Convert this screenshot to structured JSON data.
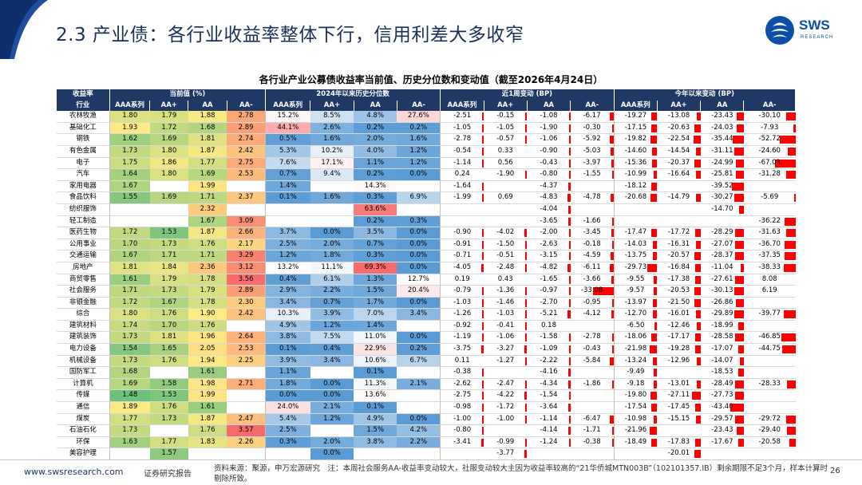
{
  "header": {
    "title": "2.3 产业债：各行业收益率整体下行，信用利差大多收窄",
    "logo_text": "SWS",
    "logo_sub": "RESEARCH"
  },
  "table_title": "各行业产业公募债收益率当前值、历史分位数和变动值（截至2026年4月24日）",
  "groups": [
    "收益率",
    "当前值 (%)",
    "2024年以来历史分位数",
    "近1周变动 (BP)",
    "今年以来变动 (BP)"
  ],
  "subheaders": [
    "行业",
    "AAA系列",
    "AA+",
    "AA",
    "AA-",
    "AAA系列",
    "AA+",
    "AA",
    "AA-",
    "AAA系列",
    "AA+",
    "AA",
    "AA-",
    "AAA系列",
    "AA+",
    "AA",
    "AA-"
  ],
  "rows": [
    {
      "ind": "农林牧渔",
      "cur": [
        "1.80",
        "1.79",
        "1.88",
        "2.78"
      ],
      "pct": [
        "15.2%",
        "8.5%",
        "4.8%",
        "27.6%"
      ],
      "wk": [
        "-2.51",
        "-0.15",
        "-1.08",
        "-6.17"
      ],
      "ytd": [
        "-19.27",
        "-13.08",
        "-23.43",
        "-30.10"
      ]
    },
    {
      "ind": "基础化工",
      "cur": [
        "1.93",
        "1.72",
        "1.68",
        "2.89"
      ],
      "pct": [
        "44.1%",
        "2.6%",
        "0.2%",
        "0.2%"
      ],
      "wk": [
        "-1.05",
        "-1.05",
        "-1.90",
        "-0.30"
      ],
      "ytd": [
        "-17.15",
        "-20.63",
        "-24.03",
        "-7.93"
      ]
    },
    {
      "ind": "钢铁",
      "cur": [
        "1.62",
        "1.69",
        "1.81",
        "2.74"
      ],
      "pct": [
        "0.5%",
        "1.6%",
        "2.0%",
        "1.6%"
      ],
      "wk": [
        "-2.78",
        "-0.57",
        "-1.06",
        "-5.92"
      ],
      "ytd": [
        "-19.82",
        "-22.54",
        "-35.44",
        "-52.72"
      ]
    },
    {
      "ind": "有色金属",
      "cur": [
        "1.73",
        "1.80",
        "1.87",
        "2.42"
      ],
      "pct": [
        "5.3%",
        "10.2%",
        "4.0%",
        "1.2%"
      ],
      "wk": [
        "-0.54",
        "0.33",
        "-0.90",
        "-5.03"
      ],
      "ytd": [
        "-14.60",
        "-14.54",
        "-31.11",
        "-24.60"
      ]
    },
    {
      "ind": "电子",
      "cur": [
        "1.75",
        "1.86",
        "1.77",
        "2.75"
      ],
      "pct": [
        "7.6%",
        "17.1%",
        "1.1%",
        "1.2%"
      ],
      "wk": [
        "-1.14",
        "0.56",
        "-0.43",
        "-3.97"
      ],
      "ytd": [
        "-15.36",
        "-20.37",
        "-24.99",
        "-67.03"
      ]
    },
    {
      "ind": "汽车",
      "cur": [
        "1.64",
        "1.80",
        "1.69",
        "2.53"
      ],
      "pct": [
        "0.7%",
        "9.4%",
        "0.2%",
        "0.0%"
      ],
      "wk": [
        "0.24",
        "-1.90",
        "-0.80",
        "-1.55"
      ],
      "ytd": [
        "-10.99",
        "-16.64",
        "-25.81",
        "-31.28"
      ]
    },
    {
      "ind": "家用电器",
      "cur": [
        "1.67",
        "",
        "1.99",
        ""
      ],
      "pct": [
        "1.4%",
        "",
        "14.3%",
        ""
      ],
      "wk": [
        "-1.64",
        "",
        "-4.37",
        ""
      ],
      "ytd": [
        "-18.12",
        "",
        "-39.52",
        ""
      ]
    },
    {
      "ind": "食品饮料",
      "cur": [
        "1.55",
        "1.69",
        "1.71",
        "2.37"
      ],
      "pct": [
        "0.1%",
        "1.6%",
        "0.3%",
        "6.9%"
      ],
      "wk": [
        "-1.99",
        "0.69",
        "-4.83",
        "-4.78"
      ],
      "ytd": [
        "-20.68",
        "-14.79",
        "-30.27",
        "-5.69"
      ]
    },
    {
      "ind": "纺织服饰",
      "cur": [
        "",
        "",
        "2.32",
        ""
      ],
      "pct": [
        "",
        "",
        "63.6%",
        ""
      ],
      "wk": [
        "",
        "",
        "-4.04",
        ""
      ],
      "ytd": [
        "",
        "",
        "-14.70",
        ""
      ]
    },
    {
      "ind": "轻工制造",
      "cur": [
        "",
        "",
        "1.67",
        "3.09"
      ],
      "pct": [
        "",
        "",
        "0.2%",
        "0.3%"
      ],
      "wk": [
        "",
        "",
        "-3.65",
        "-1.66"
      ],
      "ytd": [
        "",
        "",
        "",
        "-36.22"
      ]
    },
    {
      "ind": "医药生物",
      "cur": [
        "1.72",
        "1.53",
        "1.87",
        "2.66"
      ],
      "pct": [
        "3.7%",
        "0.0%",
        "3.5%",
        "0.0%"
      ],
      "wk": [
        "-0.90",
        "-4.02",
        "-2.00",
        "-3.45"
      ],
      "ytd": [
        "-17.47",
        "-17.72",
        "-28.29",
        "-31.63"
      ]
    },
    {
      "ind": "公用事业",
      "cur": [
        "1.70",
        "1.73",
        "1.76",
        "2.17"
      ],
      "pct": [
        "2.5%",
        "2.0%",
        "0.7%",
        "0.0%"
      ],
      "wk": [
        "-0.91",
        "-1.50",
        "-2.63",
        "-0.18"
      ],
      "ytd": [
        "-14.03",
        "-16.31",
        "-27.07",
        "-36.70"
      ]
    },
    {
      "ind": "交通运输",
      "cur": [
        "1.67",
        "1.71",
        "1.71",
        "3.29"
      ],
      "pct": [
        "1.2%",
        "1.8%",
        "0.3%",
        "0.0%"
      ],
      "wk": [
        "-0.71",
        "-0.51",
        "-3.15",
        "-4.59"
      ],
      "ytd": [
        "-13.75",
        "-20.57",
        "-28.37",
        "-37.35"
      ]
    },
    {
      "ind": "房地产",
      "cur": [
        "1.81",
        "1.84",
        "2.36",
        "3.12"
      ],
      "pct": [
        "13.2%",
        "11.1%",
        "69.3%",
        "0.0%"
      ],
      "wk": [
        "-4.05",
        "-2.48",
        "-4.82",
        "-6.11"
      ],
      "ytd": [
        "-29.73",
        "-16.84",
        "-11.04",
        "-38.33"
      ]
    },
    {
      "ind": "商贸零售",
      "cur": [
        "1.61",
        "1.79",
        "1.78",
        "3.56"
      ],
      "pct": [
        "0.4%",
        "6.1%",
        "1.3%",
        "12.7%"
      ],
      "wk": [
        "0.19",
        "0.43",
        "-1.65",
        "-3.66"
      ],
      "ytd": [
        "-9.55",
        "-17.38",
        "-27.61",
        "8.08"
      ]
    },
    {
      "ind": "社会服务",
      "cur": [
        "1.71",
        "1.73",
        "1.79",
        "2.89"
      ],
      "pct": [
        "2.9%",
        "2.2%",
        "1.5%",
        "20.4%"
      ],
      "wk": [
        "-0.79",
        "-1.36",
        "-0.97",
        "-33.08"
      ],
      "ytd": [
        "-9.57",
        "-20.53",
        "-30.13",
        "6.19"
      ]
    },
    {
      "ind": "非银金融",
      "cur": [
        "1.72",
        "1.67",
        "1.78",
        "2.30"
      ],
      "pct": [
        "3.4%",
        "0.7%",
        "1.7%",
        "0.0%"
      ],
      "wk": [
        "-1.03",
        "-1.46",
        "-2.70",
        "-0.95"
      ],
      "ytd": [
        "-13.97",
        "-21.50",
        "-26.86",
        ""
      ]
    },
    {
      "ind": "综合",
      "cur": [
        "1.80",
        "1.76",
        "1.90",
        "2.42"
      ],
      "pct": [
        "10.3%",
        "3.9%",
        "7.0%",
        "3.4%"
      ],
      "wk": [
        "-1.26",
        "-1.03",
        "-5.21",
        "-4.12"
      ],
      "ytd": [
        "-12.70",
        "-16.01",
        "-29.89",
        "-39.77"
      ]
    },
    {
      "ind": "建筑材料",
      "cur": [
        "1.74",
        "1.70",
        "1.76",
        ""
      ],
      "pct": [
        "4.9%",
        "1.2%",
        "1.4%",
        ""
      ],
      "wk": [
        "-0.92",
        "-0.41",
        "0.18",
        ""
      ],
      "ytd": [
        "-6.50",
        "-12.46",
        "-18.99",
        ""
      ]
    },
    {
      "ind": "建筑装饰",
      "cur": [
        "1.73",
        "1.81",
        "1.96",
        "2.64"
      ],
      "pct": [
        "3.8%",
        "7.5%",
        "11.0%",
        "0.0%"
      ],
      "wk": [
        "-1.19",
        "-1.06",
        "-1.58",
        "-2.78"
      ],
      "ytd": [
        "-18.06",
        "-17.17",
        "-28.58",
        "-46.85"
      ]
    },
    {
      "ind": "电力设备",
      "cur": [
        "1.54",
        "1.65",
        "2.05",
        "2.53"
      ],
      "pct": [
        "0.1%",
        "0.4%",
        "22.9%",
        "0.2%"
      ],
      "wk": [
        "-3.75",
        "-3.27",
        "-1.09",
        "-0.43"
      ],
      "ytd": [
        "-21.98",
        "-19.28",
        "-17.07",
        "-44.75"
      ]
    },
    {
      "ind": "机械设备",
      "cur": [
        "1.73",
        "1.76",
        "1.94",
        "2.25"
      ],
      "pct": [
        "3.9%",
        "3.4%",
        "10.6%",
        "6.7%"
      ],
      "wk": [
        "0.11",
        "-1.27",
        "-2.22",
        "-5.84"
      ],
      "ytd": [
        "-13.24",
        "-12.96",
        "-14.07",
        ""
      ]
    },
    {
      "ind": "国防军工",
      "cur": [
        "1.68",
        "",
        "1.61",
        ""
      ],
      "pct": [
        "1.1%",
        "",
        "0.1%",
        ""
      ],
      "wk": [
        "-0.38",
        "",
        "-4.16",
        ""
      ],
      "ytd": [
        "-9.49",
        "",
        "-18.53",
        ""
      ]
    },
    {
      "ind": "计算机",
      "cur": [
        "1.69",
        "1.58",
        "1.98",
        "2.71"
      ],
      "pct": [
        "1.8%",
        "0.0%",
        "11.3%",
        "2.1%"
      ],
      "wk": [
        "-2.62",
        "-2.47",
        "-4.34",
        "-1.86"
      ],
      "ytd": [
        "-9.18",
        "-13.01",
        "-28.49",
        "-28.33"
      ]
    },
    {
      "ind": "传媒",
      "cur": [
        "1.48",
        "1.53",
        "1.99",
        ""
      ],
      "pct": [
        "0.0%",
        "0.0%",
        "13.6%",
        ""
      ],
      "wk": [
        "-2.75",
        "-4.22",
        "-1.54",
        ""
      ],
      "ytd": [
        "-19.80",
        "-27.11",
        "-27.73",
        ""
      ]
    },
    {
      "ind": "通信",
      "cur": [
        "1.89",
        "1.76",
        "1.61",
        ""
      ],
      "pct": [
        "24.0%",
        "2.1%",
        "0.1%",
        ""
      ],
      "wk": [
        "-0.98",
        "-1.72",
        "-3.64",
        ""
      ],
      "ytd": [
        "-17.54",
        "-17.45",
        "-43.40",
        ""
      ]
    },
    {
      "ind": "煤炭",
      "cur": [
        "1.77",
        "1.73",
        "1.87",
        "2.47"
      ],
      "pct": [
        "5.4%",
        "1.2%",
        "4.9%",
        "0.0%"
      ],
      "wk": [
        "-1.00",
        "-1.00",
        "-1.14",
        "-6.47"
      ],
      "ytd": [
        "-10.98",
        "-15.15",
        "-29.57",
        "-29.72"
      ]
    },
    {
      "ind": "石油石化",
      "cur": [
        "1.73",
        "",
        "1.76",
        "3.57"
      ],
      "pct": [
        "2.5%",
        "",
        "1.5%",
        "4.2%"
      ],
      "wk": [
        "-0.80",
        "",
        "-4.14",
        "-1.71"
      ],
      "ytd": [
        "-21.96",
        "",
        "-23.43",
        "-29.40"
      ]
    },
    {
      "ind": "环保",
      "cur": [
        "1.63",
        "1.77",
        "1.83",
        "2.26"
      ],
      "pct": [
        "0.3%",
        "2.0%",
        "3.8%",
        "2.2%"
      ],
      "wk": [
        "-3.41",
        "-0.99",
        "-1.24",
        "-0.38"
      ],
      "ytd": [
        "-18.49",
        "-17.83",
        "-17.67",
        "-20.58"
      ]
    },
    {
      "ind": "美容护理",
      "cur": [
        "",
        "1.57",
        "",
        ""
      ],
      "pct": [
        "",
        "0.0%",
        "",
        ""
      ],
      "wk": [
        "",
        "-3.77",
        "",
        ""
      ],
      "ytd": [
        "",
        "-20.01",
        "",
        ""
      ]
    }
  ],
  "footer": {
    "url": "www.swsresearch.com",
    "label": "证券研究报告",
    "source": "资料来源：聚源，申万宏源研究　注：本周社会服务AA-收益率变动较大，社服变动较大主因为收益率较高的“21华侨城MTN003B”（102101357.IB）剩余期限不足3个月，样本计算时剔除所致。",
    "page": "26"
  },
  "colors": {
    "navy": "#1f3864",
    "green_hi": "#63be7b",
    "yellow": "#ffeb84",
    "red_hi": "#f8696b",
    "blue_lo": "#5b9bd5",
    "bar": "#ff0000"
  }
}
